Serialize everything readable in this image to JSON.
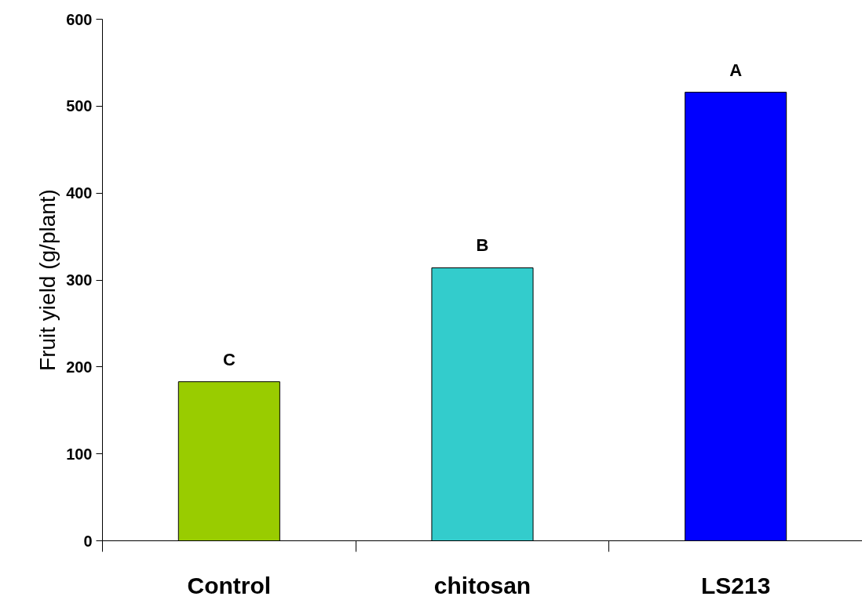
{
  "chart_data": {
    "type": "bar",
    "ylabel": "Fruit yield (g/plant)",
    "categories": [
      "Control",
      "chitosan",
      "LS213"
    ],
    "values": [
      183,
      314,
      516
    ],
    "colors": [
      "#99cc00",
      "#33cccc",
      "#0000ff"
    ],
    "ylim": [
      0,
      600
    ],
    "yticks": [
      0,
      100,
      200,
      300,
      400,
      500,
      600
    ],
    "grid": false,
    "annotations": [
      {
        "text": "C",
        "x": "Control",
        "y": 183
      },
      {
        "text": "B",
        "x": "chitosan",
        "y": 314
      },
      {
        "text": "A",
        "x": "LS213",
        "y": 516
      }
    ]
  }
}
